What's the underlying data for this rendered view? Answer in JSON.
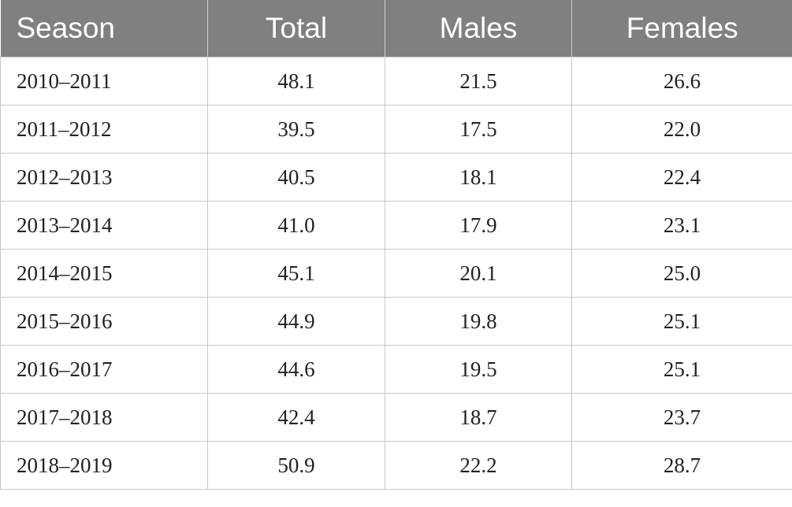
{
  "table": {
    "headers": [
      "Season",
      "Total",
      "Males",
      "Females"
    ],
    "rows": [
      [
        "2010–2011",
        "48.1",
        "21.5",
        "26.6"
      ],
      [
        "2011–2012",
        "39.5",
        "17.5",
        "22.0"
      ],
      [
        "2012–2013",
        "40.5",
        "18.1",
        "22.4"
      ],
      [
        "2013–2014",
        "41.0",
        "17.9",
        "23.1"
      ],
      [
        "2014–2015",
        "45.1",
        "20.1",
        "25.0"
      ],
      [
        "2015–2016",
        "44.9",
        "19.8",
        "25.1"
      ],
      [
        "2016–2017",
        "44.6",
        "19.5",
        "25.1"
      ],
      [
        "2017–2018",
        "42.4",
        "18.7",
        "23.7"
      ],
      [
        "2018–2019",
        "50.9",
        "22.2",
        "28.7"
      ]
    ]
  },
  "colors": {
    "header_bg": "#808080",
    "header_text": "#ffffff",
    "grid": "#c8c8c8"
  }
}
